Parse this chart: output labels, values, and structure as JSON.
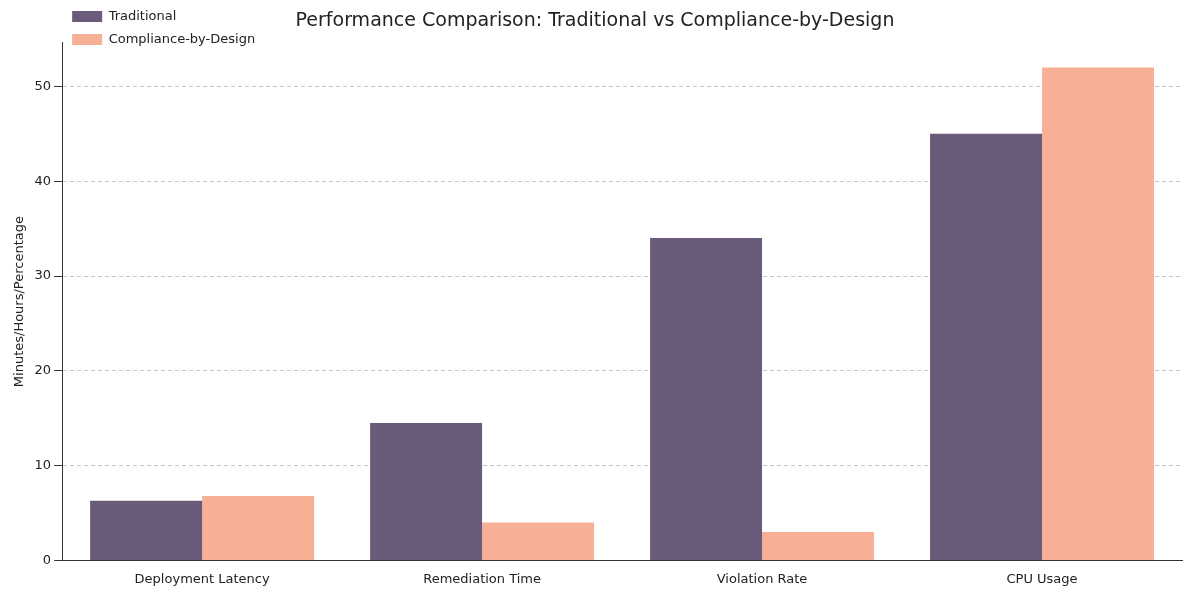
{
  "chart_data": {
    "type": "bar",
    "title": "Performance Comparison: Traditional vs Compliance-by-Design",
    "ylabel": "Minutes/Hours/Percentage",
    "categories": [
      "Deployment Latency",
      "Remediation Time",
      "Violation Rate",
      "CPU Usage"
    ],
    "series": [
      {
        "name": "Traditional",
        "color": "#6b5b7b",
        "values": [
          6.3,
          14.5,
          34.0,
          45.0
        ]
      },
      {
        "name": "Compliance-by-Design",
        "color": "#f7b096",
        "values": [
          6.8,
          4.0,
          3.0,
          52.0
        ]
      }
    ],
    "ylim": [
      0,
      54.6
    ],
    "yticks": [
      0,
      10,
      20,
      30,
      40,
      50
    ],
    "grid": "y",
    "legend": "top left"
  }
}
